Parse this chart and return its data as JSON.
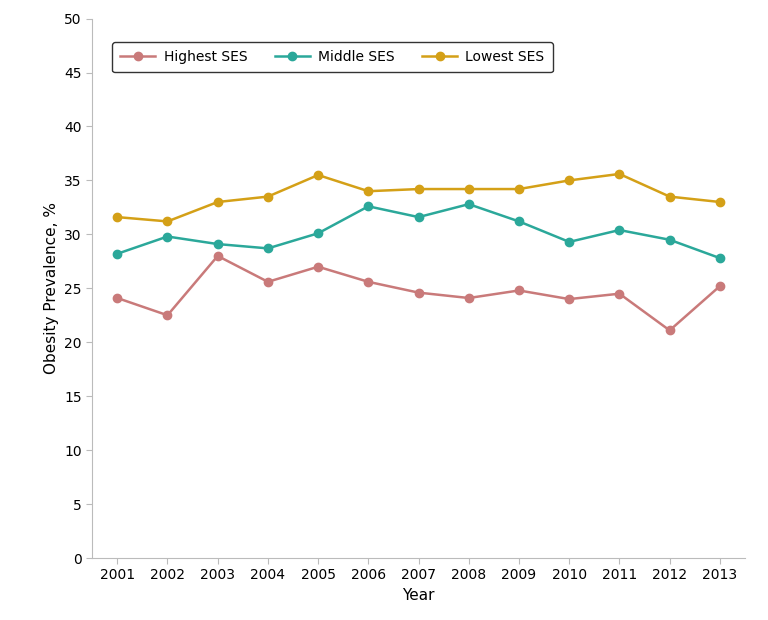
{
  "years": [
    2001,
    2002,
    2003,
    2004,
    2005,
    2006,
    2007,
    2008,
    2009,
    2010,
    2011,
    2012,
    2013
  ],
  "highest_ses": [
    24.1,
    22.5,
    28.0,
    25.6,
    27.0,
    25.6,
    24.6,
    24.1,
    24.8,
    24.0,
    24.5,
    21.1,
    25.2
  ],
  "middle_ses": [
    28.2,
    29.8,
    29.1,
    28.7,
    30.1,
    32.6,
    31.6,
    32.8,
    31.2,
    29.3,
    30.4,
    29.5,
    27.8
  ],
  "lowest_ses": [
    31.6,
    31.2,
    33.0,
    33.5,
    35.5,
    34.0,
    34.2,
    34.2,
    34.2,
    35.0,
    35.6,
    33.5,
    33.0
  ],
  "highest_color": "#c97a7a",
  "middle_color": "#2ba89a",
  "lowest_color": "#d4a017",
  "ylabel": "Obesity Prevalence, %",
  "xlabel": "Year",
  "ylim": [
    0,
    50
  ],
  "yticks": [
    0,
    5,
    10,
    15,
    20,
    25,
    30,
    35,
    40,
    45,
    50
  ],
  "legend_labels": [
    "Highest SES",
    "Middle SES",
    "Lowest SES"
  ],
  "marker": "o",
  "linewidth": 1.8,
  "markersize": 6,
  "background_color": "#ffffff",
  "spine_color": "#bbbbbb",
  "tick_color": "#555555"
}
